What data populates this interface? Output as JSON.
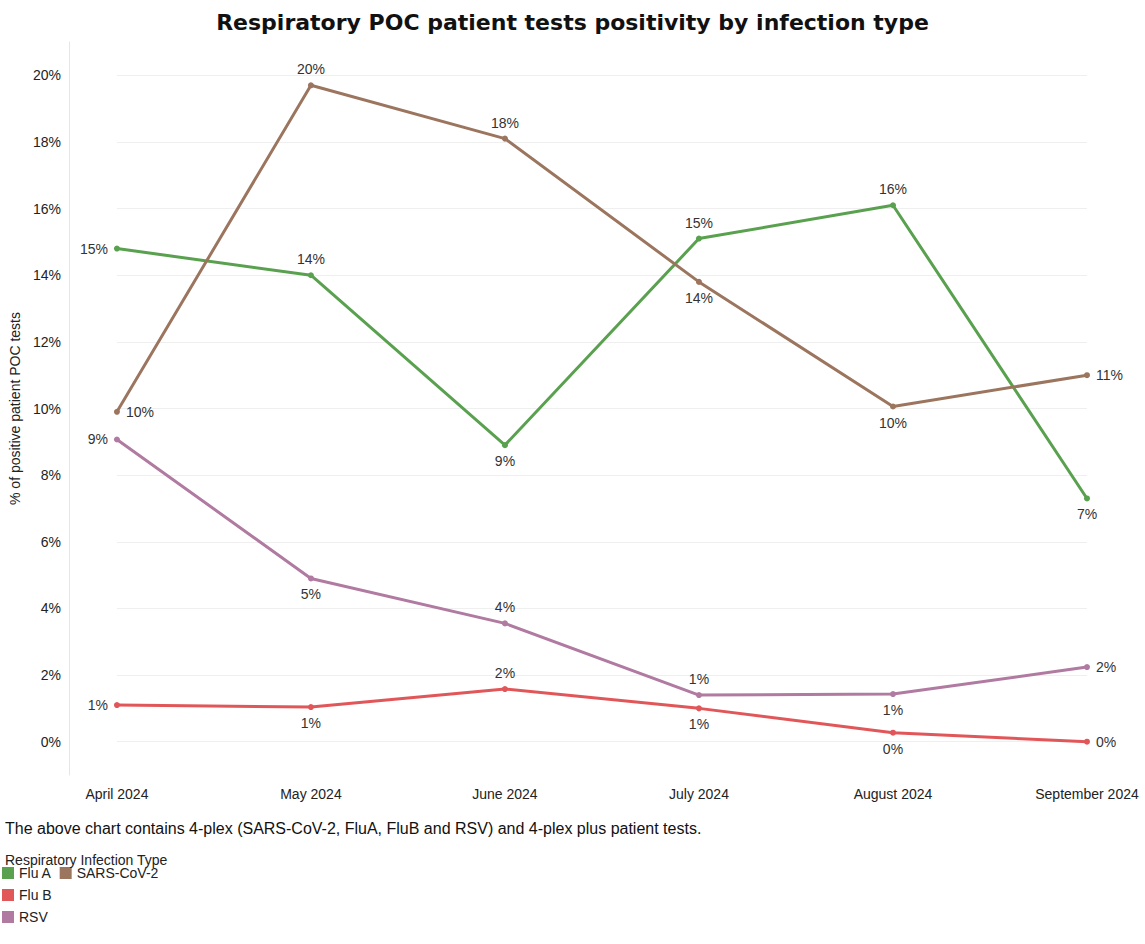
{
  "chart_data": {
    "type": "line",
    "title": "Respiratory POC patient tests positivity by infection type",
    "y_label": "% of positive patient POC tests",
    "note": "The above chart contains 4-plex (SARS-CoV-2, FluA, FluB and RSV) and 4-plex plus patient tests.",
    "legend_title": "Respiratory Infection Type",
    "categories": [
      "April 2024",
      "May 2024",
      "June 2024",
      "July 2024",
      "August 2024",
      "September 2024"
    ],
    "series": [
      {
        "name": "Flu A",
        "color": "#59a14f",
        "values": [
          14.8,
          14.0,
          8.9,
          15.1,
          16.1,
          7.3
        ],
        "value_labels": [
          "15%",
          "14%",
          "9%",
          "15%",
          "16%",
          "7%"
        ]
      },
      {
        "name": "Flu B",
        "color": "#e15759",
        "values": [
          1.1,
          1.04,
          1.58,
          1.0,
          0.27,
          0.0
        ],
        "value_labels": [
          "1%",
          "1%",
          "2%",
          "1%",
          "0%",
          "0%"
        ]
      },
      {
        "name": "RSV",
        "color": "#b07aa1",
        "values": [
          9.07,
          4.9,
          3.55,
          1.4,
          1.43,
          2.24
        ],
        "value_labels": [
          "9%",
          "5%",
          "4%",
          "1%",
          "1%",
          "2%"
        ]
      },
      {
        "name": "SARS-CoV-2",
        "color": "#9c755f",
        "values": [
          9.9,
          19.7,
          18.1,
          13.8,
          10.06,
          11.0
        ],
        "value_labels": [
          "10%",
          "20%",
          "18%",
          "14%",
          "10%",
          "11%"
        ]
      }
    ],
    "ylim": [
      -1,
      21
    ],
    "yticks": [
      {
        "value": 0,
        "label": "0%"
      },
      {
        "value": 2,
        "label": "2%"
      },
      {
        "value": 4,
        "label": "4%"
      },
      {
        "value": 6,
        "label": "6%"
      },
      {
        "value": 8,
        "label": "8%"
      },
      {
        "value": 10,
        "label": "10%"
      },
      {
        "value": 12,
        "label": "12%"
      },
      {
        "value": 14,
        "label": "14%"
      },
      {
        "value": 16,
        "label": "16%"
      },
      {
        "value": 18,
        "label": "18%"
      },
      {
        "value": 20,
        "label": "20%"
      }
    ],
    "grid": true,
    "legend": "bottom-left",
    "data_labels": true,
    "marker": "circle",
    "line_style": "solid"
  }
}
